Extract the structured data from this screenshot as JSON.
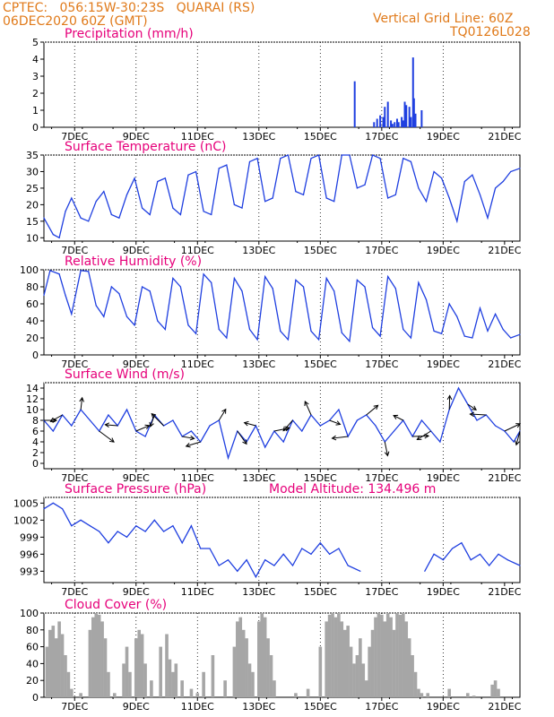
{
  "header": {
    "line1_left": "CPTEC:   056:15W-30:23S   QUARAI (RS)",
    "line2_left": "06DEC2020 60Z (GMT)",
    "line1_right": "Vertical Grid Line: 60Z",
    "line2_right": "TQ0126L028"
  },
  "colors": {
    "header": "#e07a1a",
    "title": "#e6007a",
    "line": "#1f3fe0",
    "cloud": "#a6a6a6"
  },
  "chart_data": [
    {
      "type": "bar",
      "title": "Precipitation (mm/h)",
      "xlim": [
        0,
        15.5
      ],
      "x_tick_labels": [
        "7DEC",
        "9DEC",
        "11DEC",
        "13DEC",
        "15DEC",
        "17DEC",
        "19DEC",
        "21DEC"
      ],
      "ylim": [
        0,
        5
      ],
      "y_ticks": [
        0,
        1,
        2,
        3,
        4,
        5
      ],
      "grid": "vertical dotted",
      "x": [
        10.12,
        10.75,
        10.85,
        10.95,
        11.05,
        11.1,
        11.2,
        11.3,
        11.35,
        11.42,
        11.5,
        11.55,
        11.65,
        11.7,
        11.75,
        11.8,
        11.9,
        11.95,
        12.02,
        12.05,
        12.1,
        12.3
      ],
      "values": [
        2.7,
        0.3,
        0.5,
        0.7,
        0.6,
        1.2,
        1.5,
        0.4,
        0.2,
        0.3,
        0.5,
        0.3,
        0.6,
        0.4,
        1.5,
        1.3,
        1.2,
        0.6,
        4.1,
        1.7,
        0.8,
        1.0
      ]
    },
    {
      "type": "line",
      "title": "Surface Temperature (nC)",
      "xlim": [
        0,
        15.5
      ],
      "x_tick_labels": [
        "7DEC",
        "9DEC",
        "11DEC",
        "13DEC",
        "15DEC",
        "17DEC",
        "19DEC",
        "21DEC"
      ],
      "ylim": [
        9,
        35
      ],
      "y_ticks": [
        10,
        15,
        20,
        25,
        30,
        35
      ],
      "grid": "vertical dotted",
      "x": [
        0,
        0.3,
        0.5,
        0.7,
        0.9,
        1.2,
        1.45,
        1.7,
        1.95,
        2.2,
        2.45,
        2.7,
        2.95,
        3.2,
        3.45,
        3.7,
        3.95,
        4.2,
        4.45,
        4.7,
        4.95,
        5.2,
        5.45,
        5.7,
        5.95,
        6.2,
        6.45,
        6.7,
        6.95,
        7.2,
        7.45,
        7.7,
        7.95,
        8.2,
        8.45,
        8.7,
        8.95,
        9.2,
        9.45,
        9.7,
        9.95,
        10.2,
        10.45,
        10.7,
        10.95,
        11.2,
        11.45,
        11.7,
        11.95,
        12.2,
        12.45,
        12.7,
        12.95,
        13.2,
        13.45,
        13.7,
        13.95,
        14.2,
        14.45,
        14.7,
        14.95,
        15.2,
        15.5
      ],
      "values": [
        16,
        11,
        10,
        18,
        22,
        16,
        15,
        21,
        24,
        17,
        16,
        23,
        28,
        19,
        17,
        27,
        28,
        19,
        17,
        29,
        30,
        18,
        17,
        31,
        32,
        20,
        19,
        33,
        34,
        21,
        22,
        34,
        35,
        24,
        23,
        34,
        35,
        22,
        21,
        35,
        35,
        25,
        26,
        35,
        34,
        22,
        23,
        34,
        33,
        25,
        21,
        30,
        28,
        22,
        15,
        27,
        29,
        23,
        16,
        25,
        27,
        30,
        31
      ]
    },
    {
      "type": "line",
      "title": "Relative Humidity (%)",
      "xlim": [
        0,
        15.5
      ],
      "x_tick_labels": [
        "7DEC",
        "9DEC",
        "11DEC",
        "13DEC",
        "15DEC",
        "17DEC",
        "19DEC",
        "21DEC"
      ],
      "ylim": [
        0,
        100
      ],
      "y_ticks": [
        0,
        20,
        40,
        60,
        80,
        100
      ],
      "grid": "vertical dotted",
      "x": [
        0,
        0.2,
        0.5,
        0.7,
        0.9,
        1.2,
        1.45,
        1.7,
        1.95,
        2.2,
        2.45,
        2.7,
        2.95,
        3.2,
        3.45,
        3.7,
        3.95,
        4.2,
        4.45,
        4.7,
        4.95,
        5.2,
        5.45,
        5.7,
        5.95,
        6.2,
        6.45,
        6.7,
        6.95,
        7.2,
        7.45,
        7.7,
        7.95,
        8.2,
        8.45,
        8.7,
        8.95,
        9.2,
        9.45,
        9.7,
        9.95,
        10.2,
        10.45,
        10.7,
        10.95,
        11.2,
        11.45,
        11.7,
        11.95,
        12.2,
        12.45,
        12.7,
        12.95,
        13.2,
        13.45,
        13.7,
        13.95,
        14.2,
        14.45,
        14.7,
        14.95,
        15.2,
        15.5
      ],
      "values": [
        70,
        99,
        95,
        70,
        48,
        99,
        98,
        58,
        45,
        80,
        72,
        45,
        35,
        80,
        75,
        40,
        30,
        90,
        80,
        35,
        25,
        95,
        85,
        30,
        20,
        90,
        75,
        30,
        18,
        92,
        78,
        28,
        18,
        88,
        80,
        28,
        18,
        90,
        75,
        26,
        16,
        88,
        80,
        32,
        22,
        92,
        78,
        30,
        20,
        85,
        65,
        28,
        25,
        60,
        45,
        22,
        20,
        55,
        28,
        48,
        30,
        20,
        24
      ]
    },
    {
      "type": "line",
      "title": "Surface Wind (m/s)",
      "xlim": [
        0,
        15.5
      ],
      "x_tick_labels": [
        "7DEC",
        "9DEC",
        "11DEC",
        "13DEC",
        "15DEC",
        "17DEC",
        "19DEC",
        "21DEC"
      ],
      "ylim": [
        -1,
        15
      ],
      "y_ticks": [
        0,
        2,
        4,
        6,
        8,
        10,
        12,
        14
      ],
      "grid": "vertical dotted",
      "x": [
        0,
        0.3,
        0.6,
        0.9,
        1.2,
        1.5,
        1.8,
        2.1,
        2.4,
        2.7,
        3.0,
        3.3,
        3.6,
        3.9,
        4.2,
        4.5,
        4.8,
        5.1,
        5.4,
        5.7,
        6.0,
        6.3,
        6.6,
        6.9,
        7.2,
        7.5,
        7.8,
        8.1,
        8.4,
        8.7,
        9.0,
        9.3,
        9.6,
        9.9,
        10.2,
        10.5,
        10.8,
        11.1,
        11.4,
        11.7,
        12.0,
        12.3,
        12.6,
        12.9,
        13.2,
        13.5,
        13.8,
        14.1,
        14.4,
        14.7,
        15.0,
        15.3,
        15.5
      ],
      "values": [
        8,
        6,
        9,
        7,
        10,
        8,
        6,
        9,
        7,
        10,
        6,
        5,
        9,
        7,
        8,
        5,
        6,
        4,
        7,
        8,
        1,
        6,
        4,
        7,
        3,
        6,
        4,
        8,
        6,
        9,
        7,
        8,
        10,
        5,
        8,
        9,
        7,
        4,
        6,
        8,
        5,
        8,
        6,
        4,
        10,
        14,
        11,
        8,
        9,
        7,
        6,
        4,
        6
      ],
      "vector_markers": 28
    },
    {
      "type": "line",
      "title": "Surface Pressure (hPa)",
      "annotation": "Model Altitude: 134.496 m",
      "xlim": [
        0,
        15.5
      ],
      "x_tick_labels": [
        "7DEC",
        "9DEC",
        "11DEC",
        "13DEC",
        "15DEC",
        "17DEC",
        "19DEC",
        "21DEC"
      ],
      "ylim": [
        991,
        1006
      ],
      "y_ticks": [
        993,
        996,
        999,
        1002,
        1005
      ],
      "grid": "vertical dotted",
      "segments": [
        {
          "x": [
            0,
            0.3,
            0.6,
            0.9,
            1.2,
            1.5,
            1.8,
            2.1,
            2.4,
            2.7,
            3.0,
            3.3,
            3.6,
            3.9,
            4.2,
            4.5,
            4.8,
            5.1,
            5.4,
            5.7,
            6.0,
            6.3,
            6.6,
            6.9,
            7.2,
            7.5,
            7.8,
            8.1,
            8.4,
            8.7,
            9.0,
            9.3,
            9.6,
            9.9,
            10.3
          ],
          "values": [
            1004,
            1005,
            1004,
            1001,
            1002,
            1001,
            1000,
            998,
            1000,
            999,
            1001,
            1000,
            1002,
            1000,
            1001,
            998,
            1001,
            997,
            997,
            994,
            995,
            993,
            995,
            992,
            995,
            994,
            996,
            994,
            997,
            996,
            998,
            996,
            997,
            994,
            993
          ]
        },
        {
          "x": [
            12.4,
            12.7,
            13.0,
            13.3,
            13.6,
            13.9,
            14.2,
            14.5,
            14.8,
            15.1,
            15.5
          ],
          "values": [
            993,
            996,
            995,
            997,
            998,
            995,
            996,
            994,
            996,
            995,
            994
          ]
        }
      ]
    },
    {
      "type": "bar",
      "title": "Cloud Cover (%)",
      "xlim": [
        0,
        15.5
      ],
      "x_tick_labels": [
        "7DEC",
        "9DEC",
        "11DEC",
        "13DEC",
        "15DEC",
        "17DEC",
        "19DEC",
        "21DEC"
      ],
      "ylim": [
        0,
        100
      ],
      "y_ticks": [
        0,
        20,
        40,
        60,
        80,
        100
      ],
      "grid": "vertical dotted",
      "x": [
        0.1,
        0.2,
        0.3,
        0.4,
        0.5,
        0.6,
        0.7,
        0.8,
        0.9,
        1.0,
        1.2,
        1.5,
        1.6,
        1.7,
        1.8,
        1.9,
        2.0,
        2.1,
        2.3,
        2.6,
        2.7,
        2.8,
        3.0,
        3.1,
        3.2,
        3.3,
        3.5,
        3.8,
        4.0,
        4.1,
        4.2,
        4.3,
        4.5,
        4.8,
        5.0,
        5.2,
        5.5,
        5.9,
        6.2,
        6.3,
        6.4,
        6.5,
        6.6,
        6.7,
        6.8,
        7.0,
        7.1,
        7.2,
        7.3,
        7.4,
        7.5,
        7.8,
        8.2,
        8.6,
        9.0,
        9.2,
        9.3,
        9.4,
        9.5,
        9.6,
        9.7,
        9.8,
        9.9,
        10.0,
        10.1,
        10.2,
        10.3,
        10.4,
        10.5,
        10.6,
        10.7,
        10.8,
        10.9,
        11.0,
        11.1,
        11.2,
        11.3,
        11.4,
        11.5,
        11.6,
        11.7,
        11.8,
        11.9,
        12.0,
        12.1,
        12.2,
        12.3,
        12.5,
        13.2,
        13.8,
        14.0,
        14.6,
        14.7,
        14.8
      ],
      "values": [
        60,
        80,
        85,
        70,
        90,
        75,
        50,
        30,
        10,
        0,
        5,
        80,
        95,
        100,
        98,
        90,
        70,
        30,
        5,
        40,
        60,
        30,
        70,
        80,
        75,
        40,
        20,
        60,
        75,
        45,
        30,
        40,
        20,
        10,
        5,
        30,
        50,
        20,
        60,
        90,
        95,
        80,
        70,
        40,
        30,
        90,
        100,
        95,
        70,
        50,
        20,
        0,
        5,
        10,
        60,
        90,
        98,
        100,
        95,
        100,
        90,
        80,
        85,
        60,
        40,
        50,
        70,
        40,
        20,
        60,
        80,
        95,
        100,
        98,
        90,
        100,
        95,
        80,
        100,
        98,
        100,
        90,
        70,
        50,
        30,
        10,
        5,
        5,
        10,
        5,
        2,
        15,
        20,
        10
      ]
    }
  ]
}
